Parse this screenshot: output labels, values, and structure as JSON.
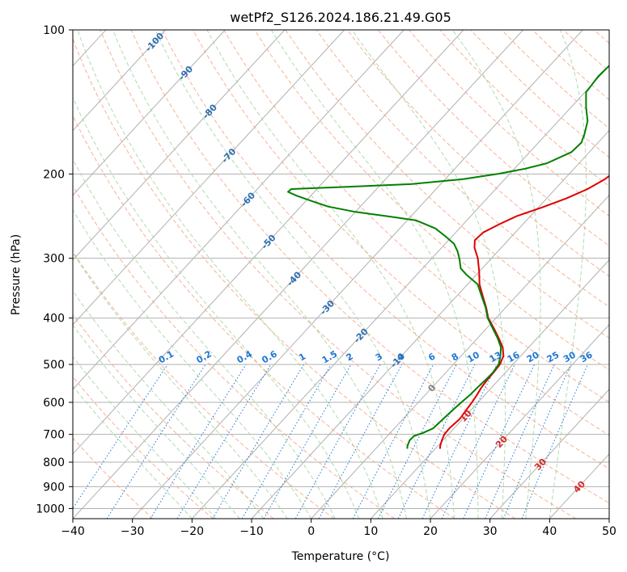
{
  "chart_data": {
    "type": "line",
    "subtype": "skew-T log-P",
    "title": "wetPf2_S126.2024.186.21.49.G05",
    "xlabel": "Temperature (°C)",
    "ylabel": "Pressure (hPa)",
    "xlim": [
      -40,
      50
    ],
    "ylim": [
      1050,
      100
    ],
    "y_scale": "log",
    "x_ticks": [
      -40,
      -30,
      -20,
      -10,
      0,
      10,
      20,
      30,
      40,
      50
    ],
    "y_ticks": [
      1000,
      900,
      800,
      700,
      600,
      500,
      400,
      300,
      200,
      100
    ],
    "grid": true,
    "series": [
      {
        "color": "#dd0000",
        "points": [
          {
            "p": 750,
            "t": 10.8
          },
          {
            "p": 740,
            "t": 10.4
          },
          {
            "p": 720,
            "t": 9.8
          },
          {
            "p": 700,
            "t": 9.3
          },
          {
            "p": 680,
            "t": 9.2
          },
          {
            "p": 650,
            "t": 9.5
          },
          {
            "p": 620,
            "t": 9.2
          },
          {
            "p": 600,
            "t": 9.0
          },
          {
            "p": 580,
            "t": 8.7
          },
          {
            "p": 560,
            "t": 8.3
          },
          {
            "p": 540,
            "t": 8.1
          },
          {
            "p": 520,
            "t": 8.0
          },
          {
            "p": 500,
            "t": 7.8
          },
          {
            "p": 480,
            "t": 7.1
          },
          {
            "p": 460,
            "t": 5.6
          },
          {
            "p": 440,
            "t": 3.5
          },
          {
            "p": 420,
            "t": 1.2
          },
          {
            "p": 400,
            "t": -1.3
          },
          {
            "p": 380,
            "t": -3.3
          },
          {
            "p": 360,
            "t": -5.6
          },
          {
            "p": 340,
            "t": -8.0
          },
          {
            "p": 320,
            "t": -10.0
          },
          {
            "p": 300,
            "t": -12.3
          },
          {
            "p": 285,
            "t": -14.5
          },
          {
            "p": 275,
            "t": -15.6
          },
          {
            "p": 265,
            "t": -15.4
          },
          {
            "p": 255,
            "t": -14.0
          },
          {
            "p": 245,
            "t": -12.3
          },
          {
            "p": 235,
            "t": -9.4
          },
          {
            "p": 225,
            "t": -6.7
          },
          {
            "p": 215,
            "t": -4.6
          },
          {
            "p": 205,
            "t": -3.2
          },
          {
            "p": 195,
            "t": -2.5
          },
          {
            "p": 185,
            "t": -2.2
          },
          {
            "p": 175,
            "t": -2.6
          },
          {
            "p": 165,
            "t": -3.4
          },
          {
            "p": 155,
            "t": -4.7
          },
          {
            "p": 145,
            "t": -6.3
          },
          {
            "p": 135,
            "t": -7.7
          },
          {
            "p": 125,
            "t": -8.8
          },
          {
            "p": 115,
            "t": -10.6
          },
          {
            "p": 108,
            "t": -13.4
          },
          {
            "p": 100,
            "t": -15.9
          }
        ]
      },
      {
        "color": "#008000",
        "points": [
          {
            "p": 750,
            "t": 5.3
          },
          {
            "p": 740,
            "t": 4.9
          },
          {
            "p": 720,
            "t": 4.4
          },
          {
            "p": 705,
            "t": 4.5
          },
          {
            "p": 695,
            "t": 5.5
          },
          {
            "p": 680,
            "t": 6.5
          },
          {
            "p": 665,
            "t": 6.6
          },
          {
            "p": 640,
            "t": 6.8
          },
          {
            "p": 620,
            "t": 7.0
          },
          {
            "p": 600,
            "t": 7.2
          },
          {
            "p": 580,
            "t": 7.5
          },
          {
            "p": 560,
            "t": 7.6
          },
          {
            "p": 540,
            "t": 7.8
          },
          {
            "p": 520,
            "t": 7.9
          },
          {
            "p": 500,
            "t": 7.6
          },
          {
            "p": 480,
            "t": 6.6
          },
          {
            "p": 460,
            "t": 5.3
          },
          {
            "p": 440,
            "t": 3.3
          },
          {
            "p": 420,
            "t": 1.0
          },
          {
            "p": 400,
            "t": -1.4
          },
          {
            "p": 380,
            "t": -3.4
          },
          {
            "p": 360,
            "t": -5.8
          },
          {
            "p": 340,
            "t": -8.3
          },
          {
            "p": 325,
            "t": -11.6
          },
          {
            "p": 315,
            "t": -13.6
          },
          {
            "p": 300,
            "t": -15.4
          },
          {
            "p": 290,
            "t": -16.8
          },
          {
            "p": 280,
            "t": -18.5
          },
          {
            "p": 270,
            "t": -21.1
          },
          {
            "p": 260,
            "t": -24.0
          },
          {
            "p": 250,
            "t": -28.5
          },
          {
            "p": 245,
            "t": -34.0
          },
          {
            "p": 240,
            "t": -40.0
          },
          {
            "p": 234,
            "t": -45.4
          },
          {
            "p": 228,
            "t": -48.9
          },
          {
            "p": 222,
            "t": -52.4
          },
          {
            "p": 218,
            "t": -54.4
          },
          {
            "p": 215,
            "t": -54.3
          },
          {
            "p": 213,
            "t": -46.0
          },
          {
            "p": 210,
            "t": -35.0
          },
          {
            "p": 205,
            "t": -27.0
          },
          {
            "p": 200,
            "t": -22.0
          },
          {
            "p": 195,
            "t": -18.2
          },
          {
            "p": 190,
            "t": -15.4
          },
          {
            "p": 180,
            "t": -13.0
          },
          {
            "p": 172,
            "t": -12.8
          },
          {
            "p": 165,
            "t": -13.6
          },
          {
            "p": 155,
            "t": -15.1
          },
          {
            "p": 145,
            "t": -17.5
          },
          {
            "p": 135,
            "t": -19.8
          },
          {
            "p": 125,
            "t": -20.2
          },
          {
            "p": 118,
            "t": -20.0
          },
          {
            "p": 110,
            "t": -19.5
          },
          {
            "p": 104,
            "t": -18.2
          },
          {
            "p": 100,
            "t": -17.4
          }
        ]
      }
    ],
    "isotherm_labels": [
      "-100",
      "-90",
      "-80",
      "-70",
      "-60",
      "-50",
      "-40",
      "-30",
      "-20",
      "-10",
      "0",
      "10",
      "20",
      "30",
      "40"
    ],
    "mixing_ratio_labels": [
      "0.1",
      "0.2",
      "0.4",
      "0.6",
      "1",
      "1.5",
      "2",
      "3",
      "4",
      "6",
      "8",
      "10",
      "13",
      "16",
      "20",
      "25",
      "30",
      "36"
    ],
    "mixing_ratio_values": [
      0.1,
      0.2,
      0.4,
      0.6,
      1,
      1.5,
      2,
      3,
      4,
      6,
      8,
      10,
      13,
      16,
      20,
      25,
      30,
      36
    ],
    "colors": {
      "isotherm_cold": "#2d6fb0",
      "isotherm_warm": "#d62728",
      "isotherm_zero": "#808080",
      "mixing_ratio": "#1f77d4",
      "dry_adiabat": "#f4a582",
      "moist_adiabat": "#a6d7a6",
      "grid": "#b0b0b0"
    }
  }
}
